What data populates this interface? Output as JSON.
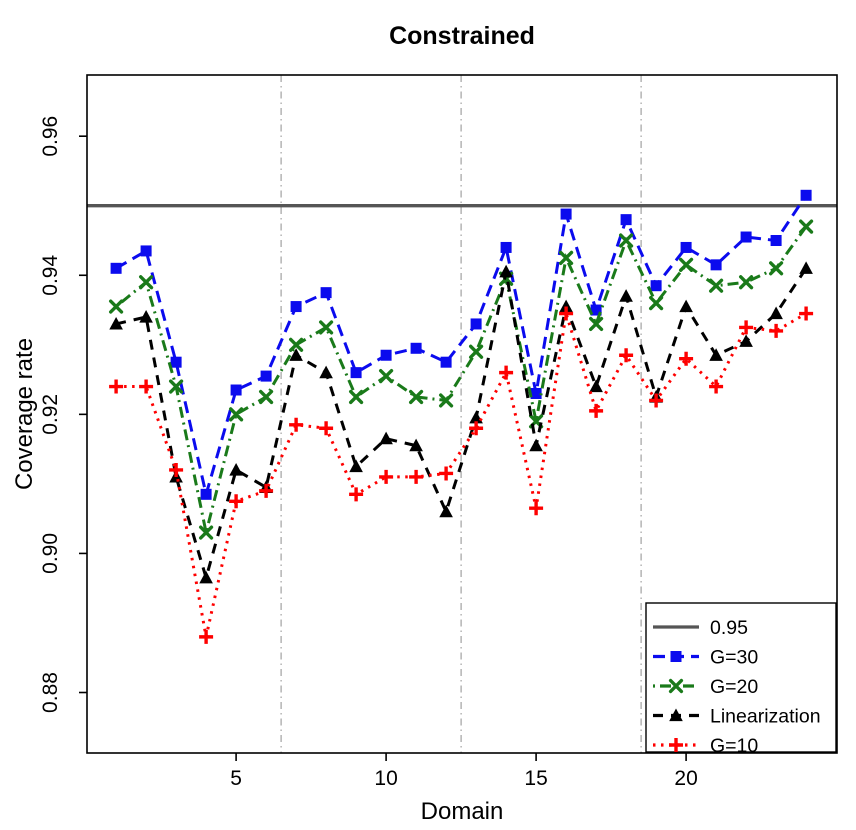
{
  "chart_data": {
    "type": "line",
    "title": "Constrained",
    "xlabel": "Domain",
    "ylabel": "Coverage rate",
    "x": [
      1,
      2,
      3,
      4,
      5,
      6,
      7,
      8,
      9,
      10,
      11,
      12,
      13,
      14,
      15,
      16,
      17,
      18,
      19,
      20,
      21,
      22,
      23,
      24
    ],
    "xlim": [
      0.03,
      25.03
    ],
    "ylim": [
      0.8713,
      0.9688
    ],
    "x_tick_values": [
      5,
      10,
      15,
      20
    ],
    "x_tick_labels": [
      "5",
      "10",
      "15",
      "20"
    ],
    "y_tick_values": [
      0.88,
      0.9,
      0.92,
      0.94,
      0.96
    ],
    "y_tick_labels": [
      "0.88",
      "0.90",
      "0.92",
      "0.94",
      "0.96"
    ],
    "group_separators_x": [
      6.5,
      12.5,
      18.5
    ],
    "grid_color": "#999999",
    "reference_line": {
      "label": "0.95",
      "value": 0.95,
      "color": "#555555"
    },
    "series": [
      {
        "name": "G=30",
        "color": "#0b0bee",
        "marker": "square",
        "dash": "longdash",
        "values": [
          0.941,
          0.9435,
          0.9275,
          0.9085,
          0.9235,
          0.9255,
          0.9355,
          0.9375,
          0.926,
          0.9285,
          0.9295,
          0.9275,
          0.933,
          0.944,
          0.923,
          0.9488,
          0.935,
          0.948,
          0.9385,
          0.944,
          0.9415,
          0.9455,
          0.945,
          0.9515
        ]
      },
      {
        "name": "G=20",
        "color": "#1a7a1a",
        "marker": "x",
        "dash": "dotdash",
        "values": [
          0.9355,
          0.939,
          0.924,
          0.903,
          0.92,
          0.9225,
          0.93,
          0.9325,
          0.9225,
          0.9255,
          0.9225,
          0.922,
          0.929,
          0.9395,
          0.919,
          0.9425,
          0.933,
          0.945,
          0.936,
          0.9415,
          0.9385,
          0.939,
          0.941,
          0.947
        ]
      },
      {
        "name": "Linearization",
        "color": "#000000",
        "marker": "triangle",
        "dash": "dashed",
        "values": [
          0.933,
          0.934,
          0.911,
          0.8965,
          0.912,
          0.9095,
          0.9285,
          0.926,
          0.9125,
          0.9165,
          0.9155,
          0.906,
          0.9195,
          0.9405,
          0.9155,
          0.9355,
          0.924,
          0.937,
          0.9225,
          0.9355,
          0.9285,
          0.9305,
          0.9345,
          0.941
        ]
      },
      {
        "name": "G=10",
        "color": "#fe0000",
        "marker": "plus",
        "dash": "dotted",
        "values": [
          0.924,
          0.924,
          0.912,
          0.888,
          0.9075,
          0.909,
          0.9185,
          0.918,
          0.9085,
          0.911,
          0.911,
          0.9115,
          0.918,
          0.926,
          0.9065,
          0.9345,
          0.9205,
          0.9285,
          0.922,
          0.928,
          0.924,
          0.9325,
          0.932,
          0.9345
        ]
      }
    ],
    "legend": {
      "position": "bottom-right",
      "entries": [
        "0.95",
        "G=30",
        "G=20",
        "Linearization",
        "G=10"
      ]
    }
  }
}
